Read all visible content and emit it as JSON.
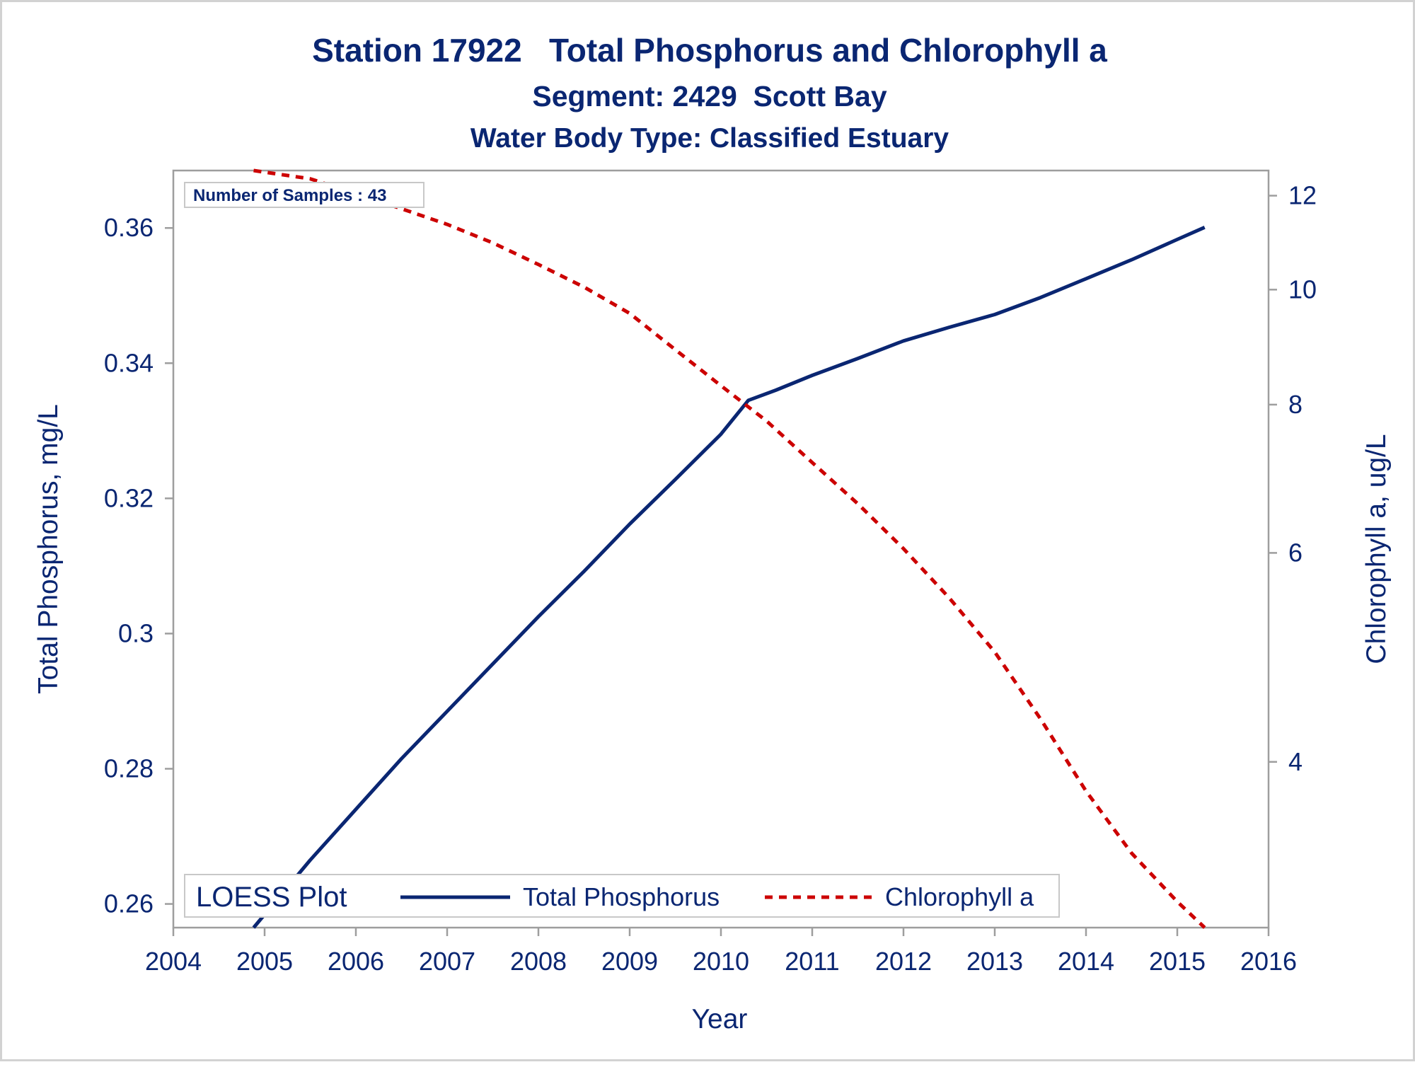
{
  "chart_data": {
    "type": "line",
    "title": "Station 17922   Total Phosphorus and Chlorophyll a",
    "subtitle": "Segment: 2429  Scott Bay",
    "subtitle2": "Water Body Type: Classified Estuary",
    "xlabel": "Year",
    "ylabel": "Total Phosphorus, mg/L",
    "y2label": "Chlorophyll a, ug/L",
    "xlim": [
      2004,
      2016
    ],
    "ylim": [
      0.2565,
      0.3685
    ],
    "y2lim": [
      2.9,
      12.6
    ],
    "y2scale": "log",
    "x_ticks": [
      "2004",
      "2005",
      "2006",
      "2007",
      "2008",
      "2009",
      "2010",
      "2011",
      "2012",
      "2013",
      "2014",
      "2015",
      "2016"
    ],
    "y_ticks": [
      "0.26",
      "0.28",
      "0.3",
      "0.32",
      "0.34",
      "0.36"
    ],
    "y2_ticks": [
      "4",
      "6",
      "8",
      "10",
      "12"
    ],
    "grid": false,
    "inset_text": "Number of Samples : 43",
    "legend": {
      "title": "LOESS Plot",
      "position": "bottom-left inside",
      "entries": [
        "Total Phosphorus",
        "Chlorophyll a"
      ]
    },
    "series": [
      {
        "name": "Total Phosphorus",
        "axis": "left",
        "color": "#0a2672",
        "style": "solid",
        "x": [
          2004.88,
          2005.5,
          2006.0,
          2006.5,
          2007.0,
          2007.5,
          2008.0,
          2008.5,
          2009.0,
          2009.5,
          2010.0,
          2010.3,
          2010.6,
          2011.0,
          2011.5,
          2012.0,
          2012.5,
          2013.0,
          2013.5,
          2014.0,
          2014.5,
          2015.0,
          2015.3
        ],
        "values": [
          0.2565,
          0.2665,
          0.274,
          0.2815,
          0.2885,
          0.2955,
          0.3025,
          0.3092,
          0.3162,
          0.3228,
          0.3295,
          0.3345,
          0.336,
          0.3382,
          0.3407,
          0.3433,
          0.3453,
          0.3472,
          0.3497,
          0.3525,
          0.3553,
          0.3583,
          0.3601
        ]
      },
      {
        "name": "Chlorophyll a",
        "axis": "right",
        "color": "#cc0000",
        "style": "dashed",
        "x": [
          2004.88,
          2005.5,
          2006.0,
          2006.5,
          2007.0,
          2007.5,
          2008.0,
          2008.5,
          2009.0,
          2009.5,
          2010.0,
          2010.5,
          2011.0,
          2011.5,
          2012.0,
          2012.5,
          2013.0,
          2013.5,
          2014.0,
          2014.5,
          2015.0,
          2015.3
        ],
        "values": [
          12.6,
          12.4,
          12.05,
          11.7,
          11.35,
          10.95,
          10.5,
          10.05,
          9.55,
          8.9,
          8.3,
          7.75,
          7.15,
          6.6,
          6.05,
          5.5,
          4.95,
          4.35,
          3.78,
          3.35,
          3.05,
          2.9
        ]
      }
    ]
  }
}
